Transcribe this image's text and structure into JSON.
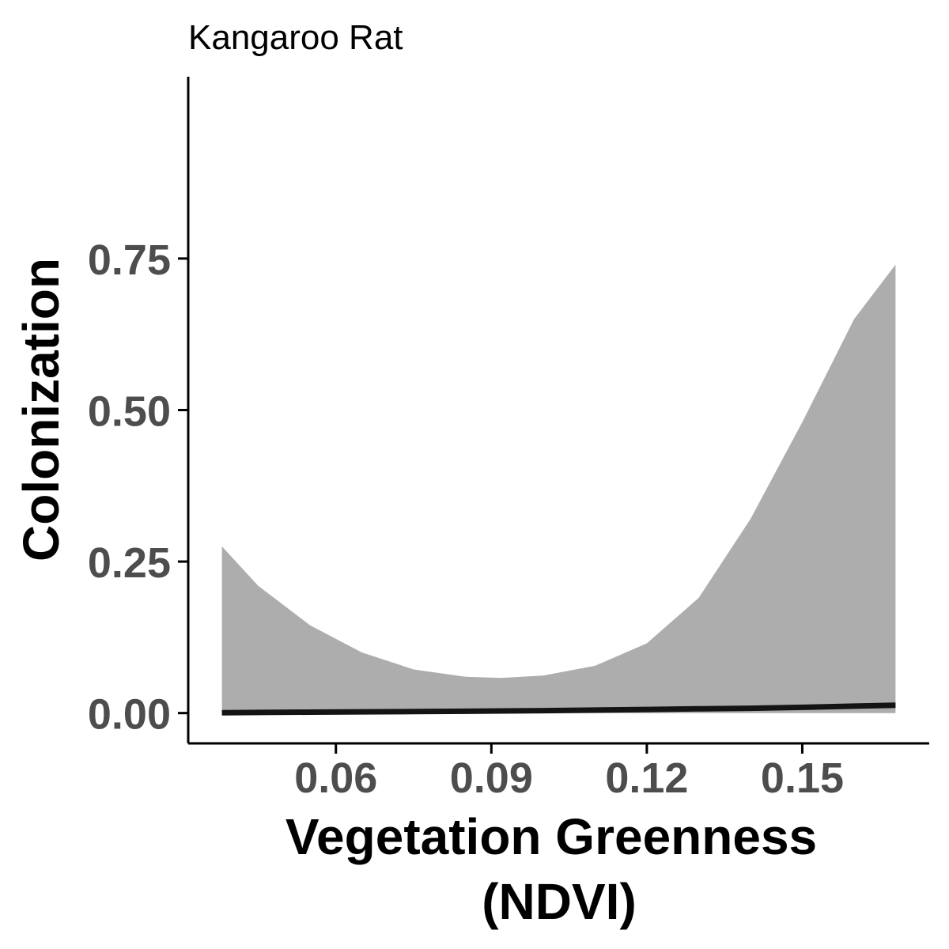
{
  "chart_data": {
    "type": "area",
    "title": "Kangaroo Rat",
    "xlabel_lines": [
      "Vegetation Greenness",
      "(NDVI)"
    ],
    "ylabel": "Colonization",
    "xlim": [
      0.0315,
      0.1745
    ],
    "ylim": [
      -0.05,
      1.05
    ],
    "x_ticks": [
      0.06,
      0.09,
      0.12,
      0.15
    ],
    "x_tick_labels": [
      "0.06",
      "0.09",
      "0.12",
      "0.15"
    ],
    "y_ticks": [
      0.0,
      0.25,
      0.5,
      0.75
    ],
    "y_tick_labels": [
      "0.00",
      "0.25",
      "0.50",
      "0.75"
    ],
    "grid": false,
    "legend": "none",
    "colors": {
      "ribbon": "#adadad",
      "line": "#141414",
      "axis": "#000000",
      "tick_label": "#4d4d4d"
    },
    "series": [
      {
        "x": [
          0.038,
          0.045,
          0.055,
          0.065,
          0.075,
          0.085,
          0.092,
          0.1,
          0.11,
          0.12,
          0.13,
          0.14,
          0.15,
          0.16,
          0.168
        ],
        "y": [
          0.0005,
          0.001,
          0.0015,
          0.002,
          0.0025,
          0.003,
          0.0035,
          0.004,
          0.005,
          0.006,
          0.007,
          0.008,
          0.0095,
          0.0115,
          0.013
        ],
        "lower": [
          0.0,
          0.0,
          0.0,
          0.0,
          0.0,
          0.0,
          0.0,
          0.0,
          0.0,
          0.0,
          0.0,
          0.0,
          0.0,
          0.0,
          0.0
        ],
        "upper": [
          0.275,
          0.21,
          0.145,
          0.1,
          0.072,
          0.06,
          0.058,
          0.062,
          0.078,
          0.115,
          0.19,
          0.32,
          0.48,
          0.65,
          0.74
        ]
      }
    ]
  }
}
